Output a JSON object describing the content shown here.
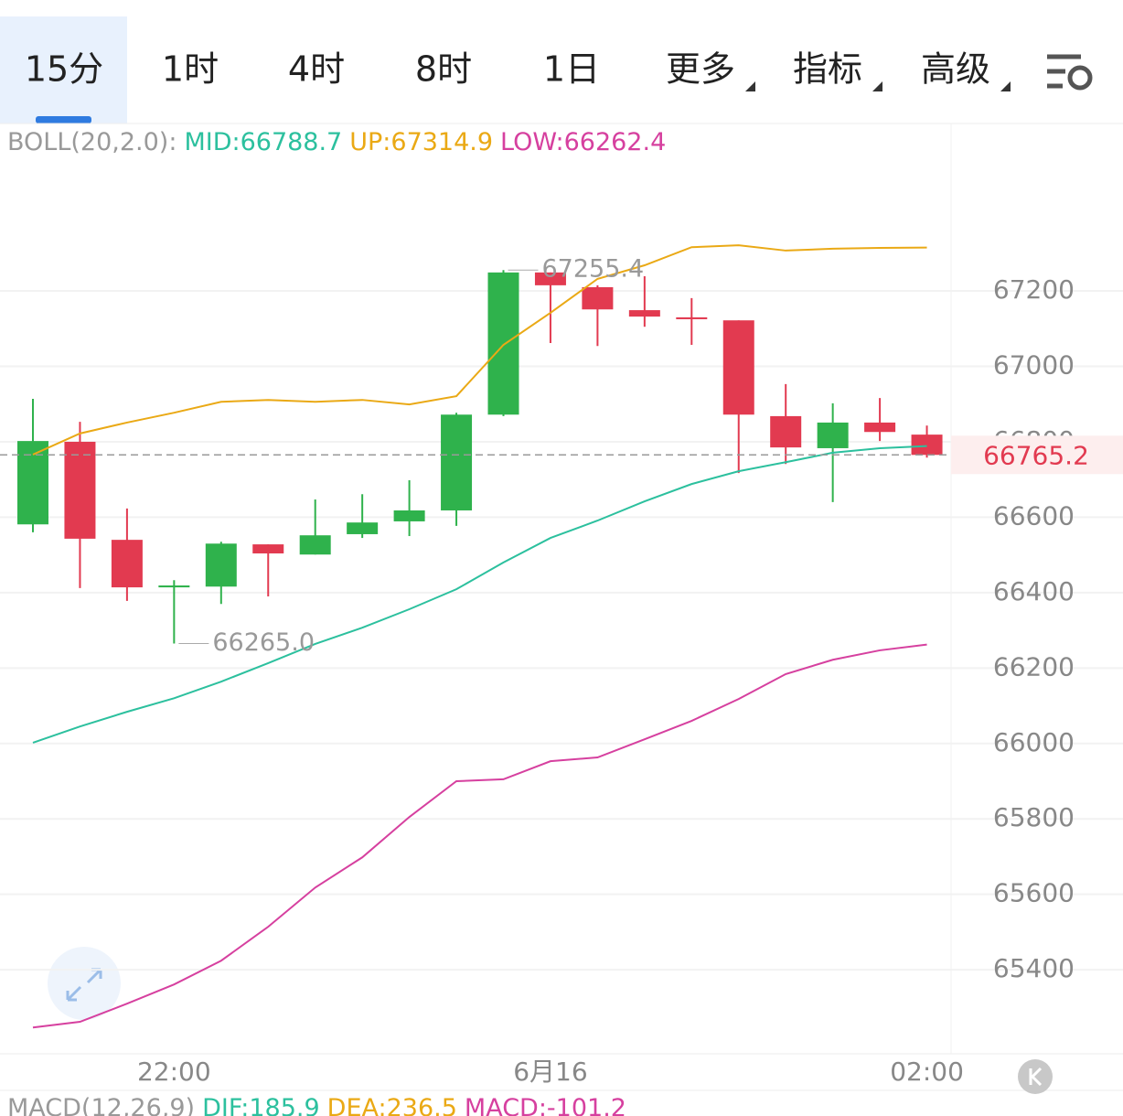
{
  "tabs": [
    "15分",
    "1时",
    "4时",
    "8时",
    "1日",
    "更多",
    "指标",
    "高级"
  ],
  "chart_data": {
    "type": "candlestick",
    "indicator_label": "BOLL(20,2.0):",
    "categories": [
      null,
      null,
      null,
      "22:00",
      null,
      null,
      null,
      null,
      null,
      null,
      null,
      "6月16",
      null,
      null,
      null,
      null,
      null,
      null,
      null,
      "02:00"
    ],
    "open": [
      66581,
      66800,
      66540,
      66414,
      66416,
      66528,
      66501,
      66555,
      66589,
      66618,
      66872,
      67249,
      67210,
      67149,
      67130,
      67122,
      66868,
      66783,
      66851,
      66819
    ],
    "high": [
      66914,
      66853,
      66623,
      66433,
      66535,
      66528,
      66647,
      66661,
      66698,
      66877,
      67255.4,
      67249,
      67215,
      67239,
      67181,
      67122,
      66953,
      66902,
      66916,
      66843
    ],
    "low": [
      66560,
      66412,
      66378,
      66265,
      66370,
      66390,
      66501,
      66545,
      66550,
      66577,
      66868,
      67062,
      67054,
      67105,
      67057,
      66717,
      66741,
      66640,
      66802,
      66758
    ],
    "close": [
      66802,
      66543,
      66414,
      66419,
      66530,
      66504,
      66552,
      66586,
      66618,
      66872,
      67249,
      67215,
      67151,
      67132,
      67125,
      66872,
      66785,
      66851,
      66826,
      66765.2
    ],
    "up_color": "#2fb24c",
    "down_color": "#e23a50",
    "series": [
      {
        "name": "MID:66788.7",
        "color": "#2cc09e",
        "values": [
          66002,
          66045,
          66084,
          66120,
          66164,
          66213,
          66264,
          66307,
          66356,
          66409,
          66480,
          66545,
          66591,
          66642,
          66688,
          66722,
          66746,
          66771,
          66783,
          66788.7
        ]
      },
      {
        "name": "UP:67314.9",
        "color": "#eaa915",
        "values": [
          66766,
          66822,
          66851,
          66877,
          66906,
          66911,
          66906,
          66911,
          66899,
          66921,
          67057,
          67142,
          67232,
          67268,
          67316,
          67321,
          67307,
          67312,
          67314,
          67314.9
        ]
      },
      {
        "name": "LOW:66262.4",
        "color": "#d6409f",
        "values": [
          65247,
          65262,
          65310,
          65361,
          65424,
          65514,
          65618,
          65698,
          65805,
          65900,
          65905,
          65953,
          65963,
          66011,
          66060,
          66118,
          66184,
          66222,
          66247,
          66262.4
        ]
      }
    ],
    "annotations": [
      "67255.4",
      "66265.0"
    ],
    "last_price_label": "66765.2",
    "ylim": [
      65182,
      67644
    ],
    "yticks": [
      65400,
      65600,
      65800,
      66000,
      66200,
      66400,
      66600,
      66800,
      67000,
      67200
    ],
    "grid": true,
    "macd_labels": [
      "MACD(12,26,9)",
      "DIF:185.9",
      "DEA:236.5",
      "MACD:-101.2"
    ]
  }
}
